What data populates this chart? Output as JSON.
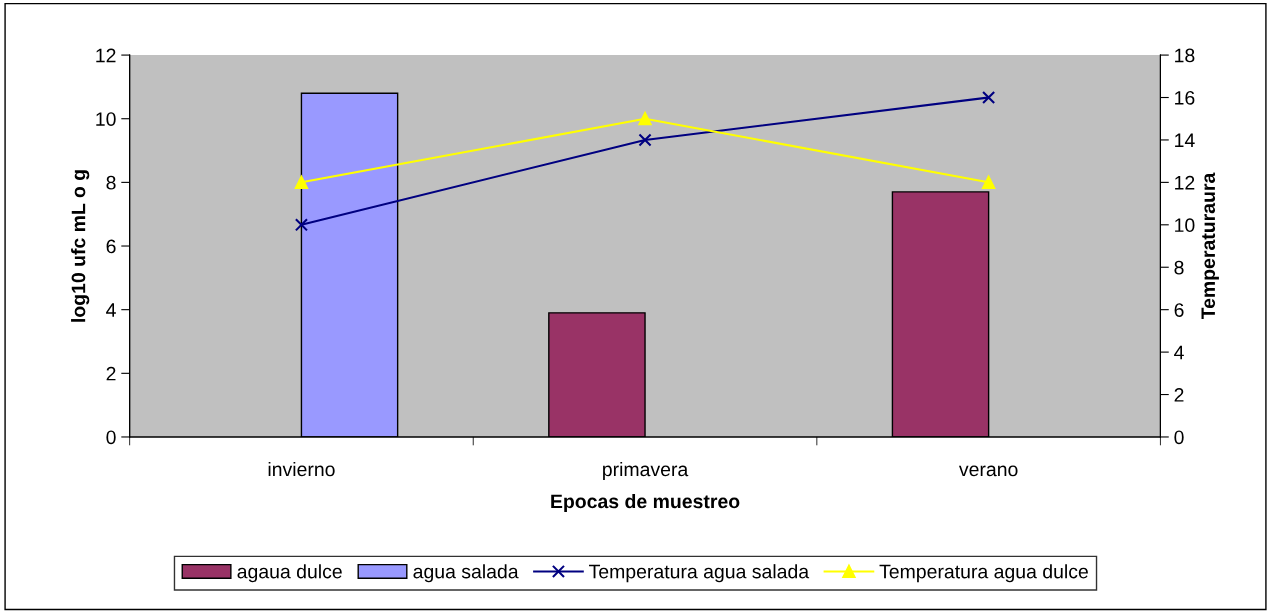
{
  "chart_data": {
    "type": "bar",
    "xlabel": "Epocas de muestreo",
    "ylabel": "log10 ufc mL o g",
    "y2label": "Temperaturaura",
    "categories": [
      "invierno",
      "primavera",
      "verano"
    ],
    "series": [
      {
        "name": "agaua dulce",
        "color": "#993366",
        "values": [
          null,
          3.9,
          7.7
        ]
      },
      {
        "name": "agua salada",
        "color": "#9999ff",
        "values": [
          10.8,
          null,
          null
        ]
      },
      {
        "name": "Temperatura agua salada",
        "type": "line",
        "axis": "y2",
        "color": "#000080",
        "marker": "cross",
        "values": [
          10,
          14,
          16
        ]
      },
      {
        "name": "Temperatura agua dulce",
        "type": "line",
        "axis": "y2",
        "color": "#ffff00",
        "marker": "triangle",
        "values": [
          12,
          15,
          12
        ]
      }
    ],
    "ylim": [
      0,
      12
    ],
    "yticks": [
      0,
      2,
      4,
      6,
      8,
      10,
      12
    ],
    "y2lim": [
      0,
      18
    ],
    "y2ticks": [
      0,
      2,
      4,
      6,
      8,
      10,
      12,
      14,
      16,
      18
    ],
    "grid": false,
    "legend": "bottom"
  }
}
